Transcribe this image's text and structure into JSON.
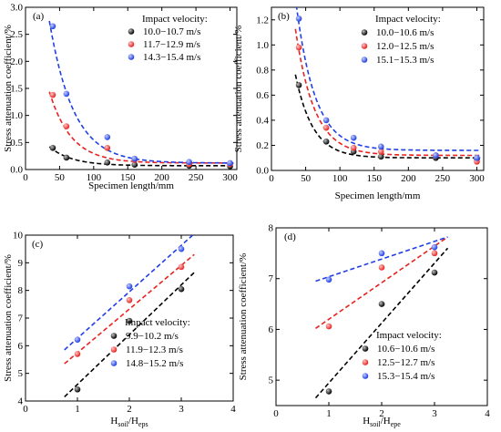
{
  "chart_data": [
    {
      "panel": "(a)",
      "type": "scatter",
      "xlabel": "Specimen length/mm",
      "ylabel": "Stress attenuation coefficient/%",
      "xlim": [
        0,
        310
      ],
      "ylim": [
        0,
        3.0
      ],
      "xticks": [
        0,
        50,
        100,
        150,
        200,
        250,
        300
      ],
      "yticks": [
        0.0,
        0.5,
        1.0,
        1.5,
        2.0,
        2.5,
        3.0
      ],
      "xtick_labels": [
        "0",
        "50",
        "100",
        "150",
        "200",
        "250",
        "300"
      ],
      "ytick_labels": [
        "0.0",
        "0.5",
        "1.0",
        "1.5",
        "2.0",
        "2.5",
        "3.0"
      ],
      "legend_title": "Impact velocity:",
      "legend_position": "top-right",
      "grid": false,
      "series": [
        {
          "name": "10.0−10.7 m/s",
          "color": "#000000",
          "x": [
            40,
            60,
            120,
            160,
            240,
            300
          ],
          "y": [
            0.4,
            0.22,
            0.13,
            0.09,
            0.07,
            0.06
          ],
          "fit": {
            "a": 1.0,
            "k": 0.03,
            "c": 0.07
          }
        },
        {
          "name": "11.7−12.9 m/s",
          "color": "#e8221f",
          "x": [
            40,
            60,
            120,
            160,
            240,
            300
          ],
          "y": [
            1.38,
            0.8,
            0.4,
            0.18,
            0.1,
            0.1
          ],
          "fit": {
            "a": 3.9,
            "k": 0.031,
            "c": 0.12
          }
        },
        {
          "name": "14.3−15.4 m/s",
          "color": "#1f3fe6",
          "x": [
            40,
            60,
            120,
            160,
            240,
            300
          ],
          "y": [
            2.65,
            1.4,
            0.6,
            0.2,
            0.14,
            0.12
          ],
          "fit": {
            "a": 7.0,
            "k": 0.028,
            "c": 0.12
          }
        }
      ]
    },
    {
      "panel": "(b)",
      "type": "scatter",
      "xlabel": "Specimen length/mm",
      "ylabel": "Stress attenuation coefficient/%",
      "xlim": [
        0,
        310
      ],
      "ylim": [
        0,
        1.3
      ],
      "xticks": [
        0,
        50,
        100,
        150,
        200,
        250,
        300
      ],
      "yticks": [
        0.0,
        0.2,
        0.4,
        0.6,
        0.8,
        1.0,
        1.2
      ],
      "xtick_labels": [
        "0",
        "50",
        "100",
        "150",
        "200",
        "250",
        "300"
      ],
      "ytick_labels": [
        "0.0",
        "0.2",
        "0.4",
        "0.6",
        "0.8",
        "1.0",
        "1.2"
      ],
      "legend_title": "Impact velocity:",
      "legend_position": "top-right",
      "grid": false,
      "series": [
        {
          "name": "10.0−10.6 m/s",
          "color": "#000000",
          "x": [
            40,
            80,
            120,
            160,
            240,
            300
          ],
          "y": [
            0.68,
            0.23,
            0.15,
            0.11,
            0.1,
            0.09
          ],
          "fit": {
            "a": 2.6,
            "k": 0.039,
            "c": 0.1
          }
        },
        {
          "name": "12.0−12.5 m/s",
          "color": "#e8221f",
          "x": [
            40,
            80,
            120,
            160,
            240,
            300
          ],
          "y": [
            0.98,
            0.34,
            0.18,
            0.15,
            0.12,
            0.07
          ],
          "fit": {
            "a": 3.55,
            "k": 0.036,
            "c": 0.12
          }
        },
        {
          "name": "15.1−15.3 m/s",
          "color": "#1f3fe6",
          "x": [
            40,
            80,
            120,
            160,
            240,
            300
          ],
          "y": [
            1.21,
            0.4,
            0.26,
            0.19,
            0.12,
            0.1
          ],
          "fit": {
            "a": 4.28,
            "k": 0.036,
            "c": 0.16
          }
        }
      ]
    },
    {
      "panel": "(c)",
      "type": "scatter",
      "xlabel_main": "H",
      "xlabel_sub1": "soil",
      "xlabel_mid": "/H",
      "xlabel_sub2": "eps",
      "ylabel": "Stress attenuation coefficient/%",
      "xlim": [
        0,
        4
      ],
      "ylim": [
        4,
        10
      ],
      "xticks": [
        0,
        1,
        2,
        3,
        4
      ],
      "yticks": [
        4,
        5,
        6,
        7,
        8,
        9,
        10
      ],
      "xtick_labels": [
        "0",
        "1",
        "2",
        "3",
        "4"
      ],
      "ytick_labels": [
        "4",
        "5",
        "6",
        "7",
        "8",
        "9",
        "10"
      ],
      "legend_title": "Impact velocity:",
      "legend_position": "bottom-right",
      "grid": false,
      "series": [
        {
          "name": "9.9−10.2 m/s",
          "color": "#000000",
          "x": [
            1,
            2,
            3
          ],
          "y": [
            4.42,
            6.9,
            8.05
          ],
          "fit": {
            "x0": 0.75,
            "y0": 4.15,
            "x1": 3.25,
            "y1": 8.65
          }
        },
        {
          "name": "11.9−12.3 m/s",
          "color": "#e8221f",
          "x": [
            1,
            2,
            3
          ],
          "y": [
            5.7,
            7.65,
            8.85
          ],
          "fit": {
            "x0": 0.75,
            "y0": 5.35,
            "x1": 3.25,
            "y1": 9.3
          }
        },
        {
          "name": "14.8−15.2 m/s",
          "color": "#1f3fe6",
          "x": [
            1,
            2,
            3
          ],
          "y": [
            6.22,
            8.15,
            9.5
          ],
          "fit": {
            "x0": 0.75,
            "y0": 5.85,
            "x1": 3.25,
            "y1": 10.05
          }
        }
      ]
    },
    {
      "panel": "(d)",
      "type": "scatter",
      "xlabel_main": "H",
      "xlabel_sub1": "soil",
      "xlabel_mid": "/H",
      "xlabel_sub2": "epe",
      "ylabel": "Stress attenuation coefficient/%",
      "xlim": [
        0,
        4
      ],
      "ylim": [
        4.5,
        8
      ],
      "xticks": [
        0,
        1,
        2,
        3,
        4
      ],
      "yticks": [
        5,
        6,
        7,
        8
      ],
      "xtick_labels": [
        "0",
        "1",
        "2",
        "3",
        "4"
      ],
      "ytick_labels": [
        "5",
        "6",
        "7",
        "8"
      ],
      "legend_title": "Impact velocity:",
      "legend_position": "bottom-right",
      "grid": false,
      "series": [
        {
          "name": "10.6−10.6 m/s",
          "color": "#000000",
          "x": [
            1,
            2,
            3
          ],
          "y": [
            4.78,
            6.5,
            7.12
          ],
          "fit": {
            "x0": 0.75,
            "y0": 4.65,
            "x1": 3.25,
            "y1": 7.6
          }
        },
        {
          "name": "12.5−12.7 m/s",
          "color": "#e8221f",
          "x": [
            1,
            2,
            3
          ],
          "y": [
            6.06,
            7.22,
            7.5
          ],
          "fit": {
            "x0": 0.75,
            "y0": 6.02,
            "x1": 3.25,
            "y1": 7.82
          }
        },
        {
          "name": "15.3−15.4 m/s",
          "color": "#1f3fe6",
          "x": [
            1,
            2,
            3
          ],
          "y": [
            6.98,
            7.5,
            7.62
          ],
          "fit": {
            "x0": 0.75,
            "y0": 6.95,
            "x1": 3.25,
            "y1": 7.82
          }
        }
      ]
    }
  ]
}
